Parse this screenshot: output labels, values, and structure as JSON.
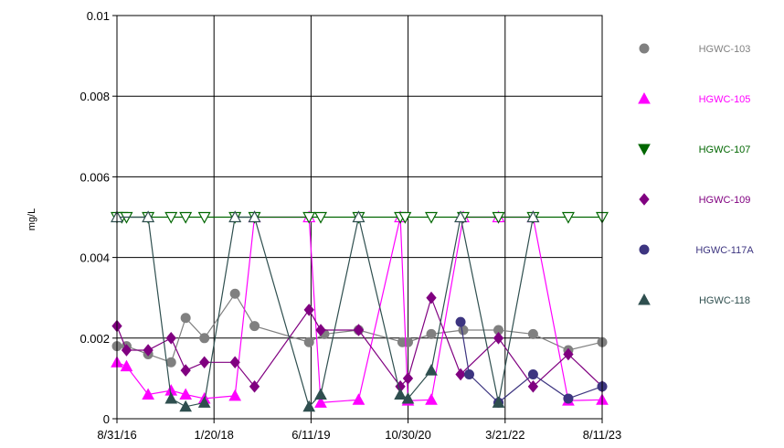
{
  "chart_data": {
    "type": "scatter",
    "title": "",
    "xlabel": "",
    "ylabel": "mg/L",
    "ylim": [
      0,
      0.01
    ],
    "yticks": [
      "0",
      "0.002",
      "0.004",
      "0.006",
      "0.008",
      "0.01"
    ],
    "xticks": [
      "8/31/16",
      "1/20/18",
      "6/11/19",
      "10/30/20",
      "3/21/22",
      "8/11/23"
    ],
    "xlim": [
      "2016-08-31",
      "2023-08-11"
    ],
    "grid": true,
    "legend_position": "right",
    "series": [
      {
        "name": "HGWC-103",
        "color": "#808080",
        "marker": "circle",
        "points": [
          {
            "x": "2016-08-31",
            "y": 0.0018,
            "nd": false
          },
          {
            "x": "2016-10-20",
            "y": 0.0018,
            "nd": false
          },
          {
            "x": "2017-02-10",
            "y": 0.0016,
            "nd": false
          },
          {
            "x": "2017-06-10",
            "y": 0.0014,
            "nd": false
          },
          {
            "x": "2017-08-25",
            "y": 0.0025,
            "nd": false
          },
          {
            "x": "2017-12-01",
            "y": 0.002,
            "nd": false
          },
          {
            "x": "2018-05-10",
            "y": 0.0031,
            "nd": false
          },
          {
            "x": "2018-08-20",
            "y": 0.0023,
            "nd": false
          },
          {
            "x": "2019-06-01",
            "y": 0.0019,
            "nd": false
          },
          {
            "x": "2019-08-20",
            "y": 0.0021,
            "nd": false
          },
          {
            "x": "2020-02-15",
            "y": 0.0022,
            "nd": false
          },
          {
            "x": "2020-10-01",
            "y": 0.0019,
            "nd": false
          },
          {
            "x": "2020-10-30",
            "y": 0.0019,
            "nd": false
          },
          {
            "x": "2021-03-01",
            "y": 0.0021,
            "nd": false
          },
          {
            "x": "2021-08-15",
            "y": 0.0022,
            "nd": false
          },
          {
            "x": "2022-02-15",
            "y": 0.0022,
            "nd": false
          },
          {
            "x": "2022-08-15",
            "y": 0.0021,
            "nd": false
          },
          {
            "x": "2023-02-15",
            "y": 0.0017,
            "nd": false
          },
          {
            "x": "2023-08-11",
            "y": 0.0019,
            "nd": false
          }
        ]
      },
      {
        "name": "HGWC-105",
        "color": "#ff00ff",
        "marker": "triangle-up",
        "points": [
          {
            "x": "2016-08-31",
            "y": 0.0014,
            "nd": false
          },
          {
            "x": "2016-10-20",
            "y": 0.0013,
            "nd": false
          },
          {
            "x": "2017-02-10",
            "y": 0.0006,
            "nd": false
          },
          {
            "x": "2017-06-10",
            "y": 0.0007,
            "nd": false
          },
          {
            "x": "2017-08-25",
            "y": 0.0006,
            "nd": false
          },
          {
            "x": "2017-12-01",
            "y": 0.0005,
            "nd": false
          },
          {
            "x": "2018-05-10",
            "y": 0.00057,
            "nd": false
          },
          {
            "x": "2018-08-20",
            "y": 0.005,
            "nd": true
          },
          {
            "x": "2019-06-01",
            "y": 0.005,
            "nd": true
          },
          {
            "x": "2019-08-01",
            "y": 0.0004,
            "nd": false
          },
          {
            "x": "2020-02-15",
            "y": 0.00047,
            "nd": false
          },
          {
            "x": "2020-09-20",
            "y": 0.005,
            "nd": true
          },
          {
            "x": "2020-10-30",
            "y": 0.00045,
            "nd": false
          },
          {
            "x": "2021-03-01",
            "y": 0.00047,
            "nd": false
          },
          {
            "x": "2021-08-15",
            "y": 0.005,
            "nd": true
          },
          {
            "x": "2022-02-15",
            "y": 0.005,
            "nd": true
          },
          {
            "x": "2022-08-15",
            "y": 0.005,
            "nd": true
          },
          {
            "x": "2023-02-15",
            "y": 0.00045,
            "nd": false
          },
          {
            "x": "2023-08-11",
            "y": 0.00047,
            "nd": false
          }
        ]
      },
      {
        "name": "HGWC-107",
        "color": "#006600",
        "marker": "triangle-down",
        "points": [
          {
            "x": "2016-08-31",
            "y": 0.005,
            "nd": true
          },
          {
            "x": "2016-09-25",
            "y": 0.005,
            "nd": true
          },
          {
            "x": "2016-10-20",
            "y": 0.005,
            "nd": true
          },
          {
            "x": "2017-02-10",
            "y": 0.005,
            "nd": true
          },
          {
            "x": "2017-06-10",
            "y": 0.005,
            "nd": true
          },
          {
            "x": "2017-08-25",
            "y": 0.005,
            "nd": true
          },
          {
            "x": "2017-12-01",
            "y": 0.005,
            "nd": true
          },
          {
            "x": "2018-05-10",
            "y": 0.005,
            "nd": true
          },
          {
            "x": "2018-08-20",
            "y": 0.005,
            "nd": true
          },
          {
            "x": "2019-06-01",
            "y": 0.005,
            "nd": true
          },
          {
            "x": "2019-08-01",
            "y": 0.005,
            "nd": true
          },
          {
            "x": "2020-02-15",
            "y": 0.005,
            "nd": true
          },
          {
            "x": "2020-09-20",
            "y": 0.005,
            "nd": true
          },
          {
            "x": "2020-10-15",
            "y": 0.005,
            "nd": true
          },
          {
            "x": "2021-03-01",
            "y": 0.005,
            "nd": true
          },
          {
            "x": "2021-08-15",
            "y": 0.005,
            "nd": true
          },
          {
            "x": "2022-02-15",
            "y": 0.005,
            "nd": true
          },
          {
            "x": "2022-08-15",
            "y": 0.005,
            "nd": true
          },
          {
            "x": "2023-02-15",
            "y": 0.005,
            "nd": true
          },
          {
            "x": "2023-08-11",
            "y": 0.005,
            "nd": true
          }
        ]
      },
      {
        "name": "HGWC-109",
        "color": "#800080",
        "marker": "diamond",
        "points": [
          {
            "x": "2016-08-31",
            "y": 0.0023,
            "nd": false
          },
          {
            "x": "2016-10-20",
            "y": 0.0017,
            "nd": false
          },
          {
            "x": "2017-02-10",
            "y": 0.0017,
            "nd": false
          },
          {
            "x": "2017-06-10",
            "y": 0.002,
            "nd": false
          },
          {
            "x": "2017-08-25",
            "y": 0.0012,
            "nd": false
          },
          {
            "x": "2017-12-01",
            "y": 0.0014,
            "nd": false
          },
          {
            "x": "2018-05-10",
            "y": 0.0014,
            "nd": false
          },
          {
            "x": "2018-08-20",
            "y": 0.0008,
            "nd": false
          },
          {
            "x": "2019-06-01",
            "y": 0.0027,
            "nd": false
          },
          {
            "x": "2019-08-01",
            "y": 0.0022,
            "nd": false
          },
          {
            "x": "2020-02-15",
            "y": 0.0022,
            "nd": false
          },
          {
            "x": "2020-09-20",
            "y": 0.0008,
            "nd": false
          },
          {
            "x": "2020-10-30",
            "y": 0.001,
            "nd": false
          },
          {
            "x": "2021-03-01",
            "y": 0.003,
            "nd": false
          },
          {
            "x": "2021-08-01",
            "y": 0.0011,
            "nd": false
          },
          {
            "x": "2022-02-15",
            "y": 0.002,
            "nd": false
          },
          {
            "x": "2022-08-15",
            "y": 0.0008,
            "nd": false
          },
          {
            "x": "2023-02-15",
            "y": 0.0016,
            "nd": false
          },
          {
            "x": "2023-08-11",
            "y": 0.0008,
            "nd": false
          }
        ]
      },
      {
        "name": "HGWC-117A",
        "color": "#3d3580",
        "marker": "circle",
        "points": [
          {
            "x": "2021-08-01",
            "y": 0.0024,
            "nd": false
          },
          {
            "x": "2021-09-15",
            "y": 0.0011,
            "nd": false
          },
          {
            "x": "2022-02-15",
            "y": 0.0004,
            "nd": false
          },
          {
            "x": "2022-08-15",
            "y": 0.0011,
            "nd": false
          },
          {
            "x": "2023-02-15",
            "y": 0.0005,
            "nd": false
          },
          {
            "x": "2023-08-11",
            "y": 0.0008,
            "nd": false
          }
        ]
      },
      {
        "name": "HGWC-118",
        "color": "#2f4f4f",
        "marker": "triangle-up",
        "points": [
          {
            "x": "2016-08-31",
            "y": 0.005,
            "nd": true
          },
          {
            "x": "2017-02-10",
            "y": 0.005,
            "nd": true
          },
          {
            "x": "2017-06-10",
            "y": 0.0005,
            "nd": false
          },
          {
            "x": "2017-08-25",
            "y": 0.0003,
            "nd": false
          },
          {
            "x": "2017-12-01",
            "y": 0.0004,
            "nd": false
          },
          {
            "x": "2018-05-10",
            "y": 0.005,
            "nd": true
          },
          {
            "x": "2018-08-20",
            "y": 0.005,
            "nd": true
          },
          {
            "x": "2019-06-01",
            "y": 0.0003,
            "nd": false
          },
          {
            "x": "2019-08-01",
            "y": 0.0006,
            "nd": false
          },
          {
            "x": "2020-02-15",
            "y": 0.005,
            "nd": true
          },
          {
            "x": "2020-09-20",
            "y": 0.0006,
            "nd": false
          },
          {
            "x": "2020-10-30",
            "y": 0.0005,
            "nd": false
          },
          {
            "x": "2021-03-01",
            "y": 0.0012,
            "nd": false
          },
          {
            "x": "2021-08-01",
            "y": 0.005,
            "nd": true
          },
          {
            "x": "2022-02-15",
            "y": 0.0004,
            "nd": false
          },
          {
            "x": "2022-08-15",
            "y": 0.005,
            "nd": true
          }
        ]
      }
    ]
  }
}
